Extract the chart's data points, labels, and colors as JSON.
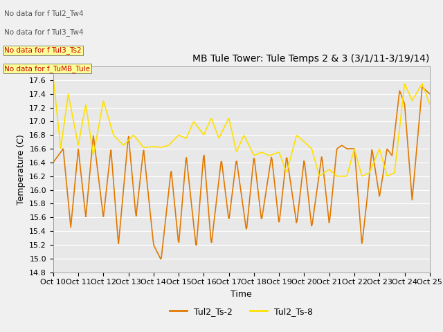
{
  "title": "MB Tule Tower: Tule Temps 2 & 3 (3/1/11-3/19/14)",
  "xlabel": "Time",
  "ylabel": "Temperature (C)",
  "ylim": [
    14.8,
    17.8
  ],
  "yticks": [
    14.8,
    15.0,
    15.2,
    15.4,
    15.6,
    15.8,
    16.0,
    16.2,
    16.4,
    16.6,
    16.8,
    17.0,
    17.2,
    17.4,
    17.6,
    17.8
  ],
  "xtick_labels": [
    "Oct 10",
    "Oct 11",
    "Oct 12",
    "Oct 13",
    "Oct 14",
    "Oct 15",
    "Oct 16",
    "Oct 17",
    "Oct 18",
    "Oct 19",
    "Oct 20",
    "Oct 21",
    "Oct 22",
    "Oct 23",
    "Oct 24",
    "Oct 25"
  ],
  "color_ts2": "#E07800",
  "color_ts8": "#FFE000",
  "legend_labels": [
    "Tul2_Ts-2",
    "Tul2_Ts-8"
  ],
  "no_data_lines": [
    "No data for f Tul2_Tw4",
    "No data for f Tul3_Tw4",
    "No data for f Tul3_Ts2",
    "No data for f_TuMB_Tule"
  ],
  "background_color": "#f0f0f0",
  "plot_bg": "#e8e8e8",
  "ts2": [
    16.4,
    16.1,
    15.45,
    16.6,
    15.6,
    16.8,
    15.6,
    16.6,
    15.2,
    16.8,
    15.6,
    16.6,
    15.2,
    14.98,
    16.3,
    15.2,
    16.5,
    15.15,
    16.55,
    15.2,
    16.45,
    15.55,
    16.45,
    15.4,
    16.5,
    15.55,
    16.5,
    15.5,
    16.8,
    16.7,
    16.5,
    16.5,
    16.6,
    16.6,
    17.45,
    17.25,
    15.85,
    16.6,
    15.9,
    17.5,
    16.0,
    15.9,
    16.6,
    16.0,
    17.4,
    17.3
  ],
  "ts8": [
    17.65,
    16.6,
    17.4,
    16.65,
    17.25,
    16.5,
    17.3,
    16.8,
    16.65,
    16.8,
    16.62,
    16.63,
    16.62,
    16.65,
    16.8,
    16.75,
    17.0,
    16.8,
    17.05,
    16.75,
    17.05,
    16.55,
    16.8,
    16.5,
    16.55,
    16.5,
    16.55,
    16.25,
    16.8,
    16.7,
    16.6,
    16.2,
    16.3,
    16.2,
    17.55,
    17.3,
    16.2,
    16.6,
    16.25,
    17.55,
    17.25,
    16.2,
    16.6,
    16.2,
    17.25,
    17.3
  ]
}
